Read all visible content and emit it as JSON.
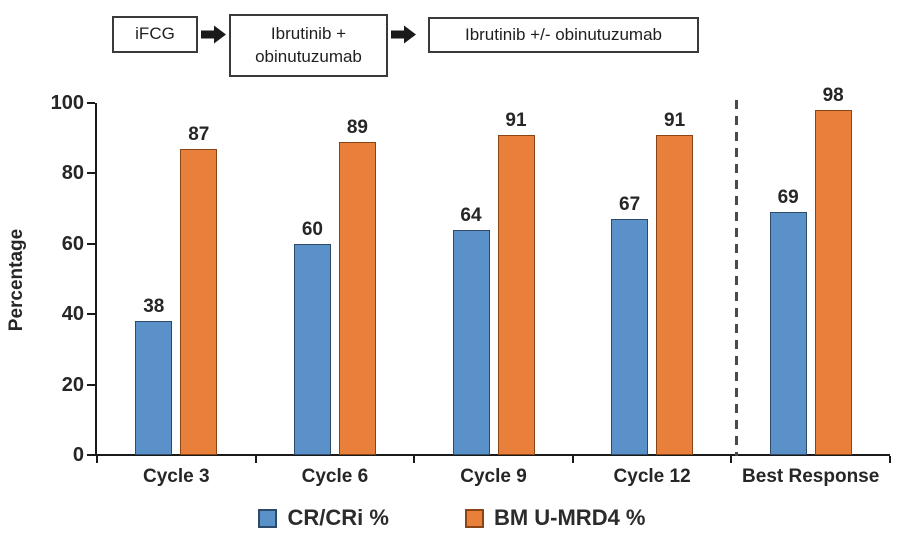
{
  "flow": {
    "boxes": [
      "iFCG",
      "Ibrutinib + obinutuzumab",
      "Ibrutinib +/- obinutuzumab"
    ],
    "arrow_icon": "right-block-arrow"
  },
  "chart_data": {
    "type": "bar",
    "title": "",
    "categories": [
      "Cycle 3",
      "Cycle 6",
      "Cycle 9",
      "Cycle 12",
      "Best Response"
    ],
    "series": [
      {
        "name": "CR/CRi %",
        "color": "#5B91C9",
        "border_color": "#2E4A6B",
        "values": [
          38,
          60,
          64,
          67,
          69
        ]
      },
      {
        "name": "BM U-MRD4 %",
        "color": "#E8803C",
        "border_color": "#8A4517",
        "values": [
          87,
          89,
          91,
          91,
          98
        ]
      }
    ],
    "xlabel": "",
    "ylabel": "Percentage",
    "ylim": [
      0,
      100
    ],
    "yticks": [
      0,
      20,
      40,
      60,
      80,
      100
    ],
    "grid": false,
    "legend_position": "bottom",
    "bar_value_labels": true,
    "separator": {
      "type": "dashed-vertical-line",
      "before_category": "Best Response"
    },
    "axis_color": "#1a1a1a",
    "text_color": "#262626"
  }
}
